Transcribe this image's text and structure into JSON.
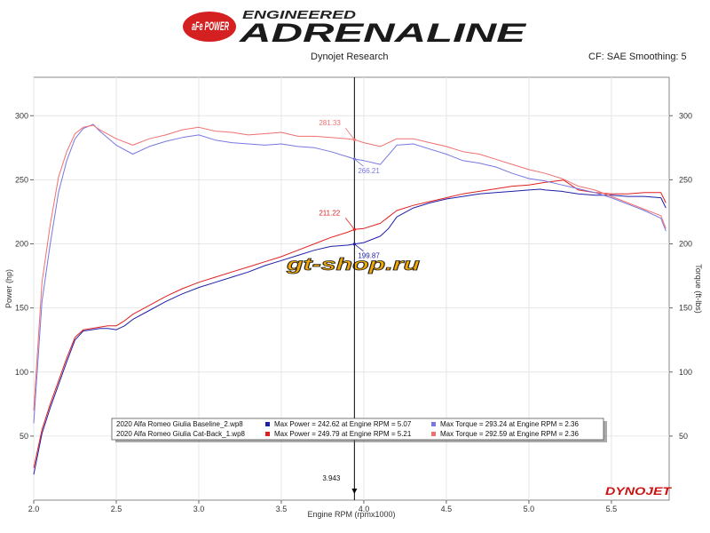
{
  "header": {
    "brand_logo": "aFe POWER",
    "banner_line1": "ENGINEERED",
    "banner_line2": "ADRENALINE",
    "subtitle": "Dynojet Research",
    "cf_text": "CF: SAE Smoothing: 5"
  },
  "watermark": "gt-shop.ru",
  "dyno_logo": "DYNOJET",
  "colors": {
    "baseline_power": "#1f1fa8",
    "catback_power": "#e02020",
    "baseline_torque": "#7777e0",
    "catback_torque": "#f07070",
    "grid": "#e6e6e6",
    "cursor": "#000000"
  },
  "cursor_label": "3.943",
  "chart_data": {
    "type": "line",
    "xlabel": "Engine RPM (rpmx1000)",
    "ylabel_left": "Power (hp)",
    "ylabel_right": "Torque (ft-lbs)",
    "xlim": [
      2.0,
      5.85
    ],
    "ylim_left": [
      0,
      330
    ],
    "ylim_right": [
      0,
      330
    ],
    "x_ticks": [
      "2.0",
      "2.5",
      "3.0",
      "3.5",
      "4.0",
      "4.5",
      "5.0",
      "5.5"
    ],
    "y_ticks_left": [
      "50",
      "100",
      "150",
      "200",
      "250",
      "300"
    ],
    "y_ticks_right": [
      "50",
      "100",
      "150",
      "200",
      "250",
      "300"
    ],
    "grid": true,
    "cursor_rpm": 3.943,
    "series": [
      {
        "name": "2020 Alfa Romeo Giulia Baseline_2.wp8",
        "kind": "power",
        "axis": "left",
        "color": "#1f1fa8",
        "x": [
          2.0,
          2.05,
          2.1,
          2.15,
          2.2,
          2.25,
          2.3,
          2.35,
          2.4,
          2.45,
          2.5,
          2.55,
          2.6,
          2.7,
          2.8,
          2.9,
          3.0,
          3.1,
          3.2,
          3.3,
          3.4,
          3.5,
          3.6,
          3.7,
          3.8,
          3.9,
          3.943,
          4.0,
          4.1,
          4.15,
          4.2,
          4.3,
          4.4,
          4.5,
          4.6,
          4.7,
          4.8,
          4.9,
          5.0,
          5.07,
          5.1,
          5.2,
          5.3,
          5.4,
          5.5,
          5.6,
          5.7,
          5.8,
          5.83
        ],
        "y": [
          20,
          52,
          72,
          90,
          108,
          125,
          132,
          133,
          134,
          134,
          133,
          136,
          141,
          148,
          155,
          161,
          166,
          170,
          174,
          178,
          183,
          187,
          191,
          195,
          198,
          199,
          199.87,
          201,
          206,
          212,
          221,
          228,
          232,
          235,
          237,
          239,
          240,
          241,
          242,
          242.62,
          242,
          241,
          239,
          238,
          238,
          237,
          237,
          236,
          228
        ]
      },
      {
        "name": "2020 Alfa Romeo Giulia Cat-Back_1.wp8",
        "kind": "power",
        "axis": "left",
        "color": "#e02020",
        "x": [
          2.0,
          2.05,
          2.1,
          2.15,
          2.2,
          2.25,
          2.3,
          2.35,
          2.4,
          2.45,
          2.5,
          2.55,
          2.6,
          2.7,
          2.8,
          2.9,
          3.0,
          3.1,
          3.2,
          3.3,
          3.4,
          3.5,
          3.6,
          3.7,
          3.8,
          3.9,
          3.943,
          4.0,
          4.1,
          4.15,
          4.2,
          4.3,
          4.4,
          4.5,
          4.6,
          4.7,
          4.8,
          4.9,
          5.0,
          5.1,
          5.21,
          5.3,
          5.4,
          5.5,
          5.6,
          5.7,
          5.8,
          5.83
        ],
        "y": [
          25,
          55,
          75,
          93,
          111,
          127,
          133,
          134,
          135,
          136,
          136,
          140,
          145,
          152,
          159,
          165,
          170,
          174,
          178,
          182,
          186,
          190,
          195,
          200,
          205,
          209,
          211.22,
          212,
          216,
          221,
          226,
          230,
          233,
          236,
          239,
          241,
          243,
          245,
          246,
          248,
          249.79,
          242,
          240,
          239,
          239,
          240,
          240,
          232
        ]
      },
      {
        "name": "Torque – Baseline_2",
        "kind": "torque",
        "axis": "right",
        "color": "#7777e0",
        "x": [
          2.0,
          2.05,
          2.1,
          2.15,
          2.2,
          2.25,
          2.3,
          2.36,
          2.4,
          2.5,
          2.6,
          2.7,
          2.8,
          2.9,
          3.0,
          3.1,
          3.2,
          3.3,
          3.4,
          3.5,
          3.6,
          3.7,
          3.8,
          3.9,
          3.943,
          4.0,
          4.1,
          4.2,
          4.3,
          4.4,
          4.5,
          4.6,
          4.7,
          4.8,
          4.9,
          5.0,
          5.1,
          5.2,
          5.3,
          5.4,
          5.5,
          5.6,
          5.7,
          5.8,
          5.83
        ],
        "y": [
          60,
          155,
          200,
          240,
          265,
          282,
          290,
          293.24,
          288,
          277,
          270,
          276,
          280,
          283,
          285,
          281,
          279,
          278,
          277,
          278,
          276,
          275,
          272,
          268,
          266.21,
          265,
          262,
          277,
          278,
          274,
          270,
          265,
          263,
          260,
          255,
          251,
          249,
          246,
          243,
          240,
          236,
          231,
          226,
          220,
          210
        ]
      },
      {
        "name": "Torque – Cat-Back_1",
        "kind": "torque",
        "axis": "right",
        "color": "#f07070",
        "x": [
          2.0,
          2.05,
          2.1,
          2.15,
          2.2,
          2.25,
          2.3,
          2.36,
          2.4,
          2.5,
          2.6,
          2.7,
          2.8,
          2.9,
          3.0,
          3.1,
          3.2,
          3.3,
          3.4,
          3.5,
          3.6,
          3.7,
          3.8,
          3.9,
          3.943,
          4.0,
          4.1,
          4.2,
          4.3,
          4.4,
          4.5,
          4.6,
          4.7,
          4.8,
          4.9,
          5.0,
          5.1,
          5.2,
          5.3,
          5.4,
          5.5,
          5.6,
          5.7,
          5.8,
          5.83
        ],
        "y": [
          70,
          170,
          215,
          252,
          272,
          286,
          291,
          292.59,
          289,
          282,
          277,
          282,
          285,
          289,
          291,
          288,
          287,
          285,
          286,
          287,
          284,
          284,
          283,
          282,
          281.33,
          279,
          276,
          282,
          282,
          279,
          276,
          272,
          270,
          266,
          262,
          258,
          255,
          251,
          245,
          242,
          237,
          232,
          227,
          222,
          212
        ]
      }
    ],
    "annotations": [
      {
        "text": "281.33",
        "series": 3
      },
      {
        "text": "266.21",
        "series": 2
      },
      {
        "text": "211.22",
        "series": 1
      },
      {
        "text": "199.87",
        "series": 0
      }
    ],
    "legend": {
      "placement": "bottom-center",
      "rows": [
        {
          "file": "2020 Alfa Romeo Giulia Baseline_2.wp8",
          "power_color": "#1f1fa8",
          "power_text": "Max Power = 242.62 at Engine RPM = 5.07",
          "torque_color": "#7777e0",
          "torque_text": "Max Torque = 293.24 at Engine RPM = 2.36"
        },
        {
          "file": "2020 Alfa Romeo Giulia Cat-Back_1.wp8",
          "power_color": "#e02020",
          "power_text": "Max Power = 249.79 at Engine RPM = 5.21",
          "torque_color": "#f07070",
          "torque_text": "Max Torque = 292.59 at Engine RPM = 2.36"
        }
      ]
    }
  }
}
